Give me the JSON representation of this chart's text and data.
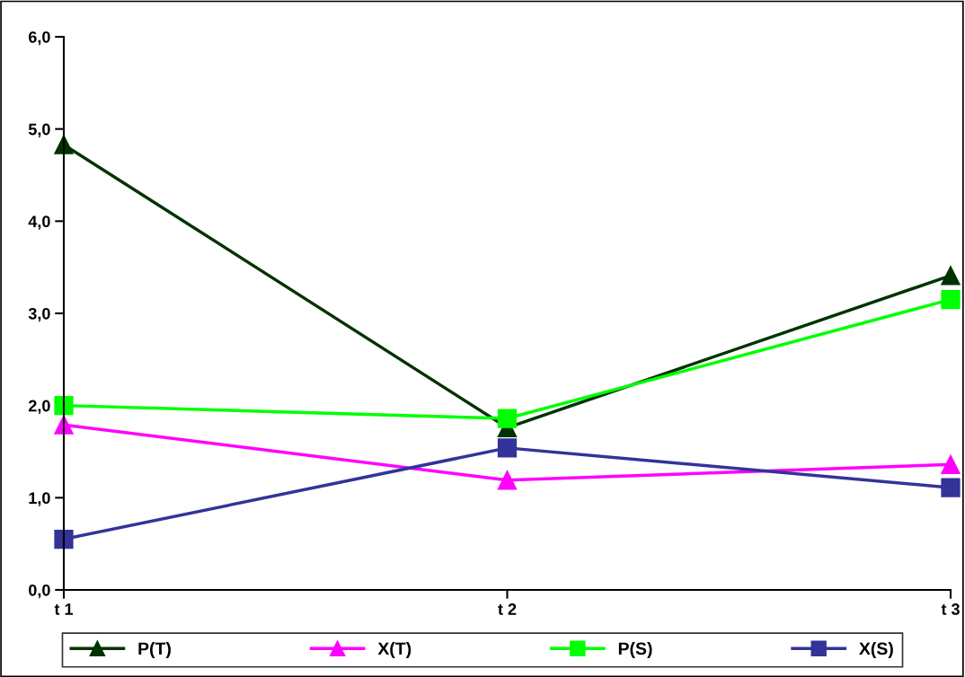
{
  "chart_data": {
    "type": "line",
    "categories": [
      "t 1",
      "t 2",
      "t 3"
    ],
    "series": [
      {
        "name": "P(T)",
        "color": "#003300",
        "marker": "triangle",
        "values": [
          4.83,
          1.76,
          3.41
        ]
      },
      {
        "name": "X(T)",
        "color": "#ff00ff",
        "marker": "triangle",
        "values": [
          1.79,
          1.19,
          1.36
        ]
      },
      {
        "name": "P(S)",
        "color": "#00ff00",
        "marker": "square",
        "values": [
          2.0,
          1.86,
          3.15
        ]
      },
      {
        "name": "X(S)",
        "color": "#333399",
        "marker": "square",
        "values": [
          0.55,
          1.54,
          1.11
        ]
      }
    ],
    "ylim": [
      0,
      6
    ],
    "yticks": [
      {
        "value": 0,
        "label": "0,0"
      },
      {
        "value": 1,
        "label": "1,0"
      },
      {
        "value": 2,
        "label": "2,0"
      },
      {
        "value": 3,
        "label": "3,0"
      },
      {
        "value": 4,
        "label": "4,0"
      },
      {
        "value": 5,
        "label": "5,0"
      },
      {
        "value": 6,
        "label": "6,0"
      }
    ],
    "grid": false,
    "legend": "bottom",
    "line_style": "solid"
  }
}
